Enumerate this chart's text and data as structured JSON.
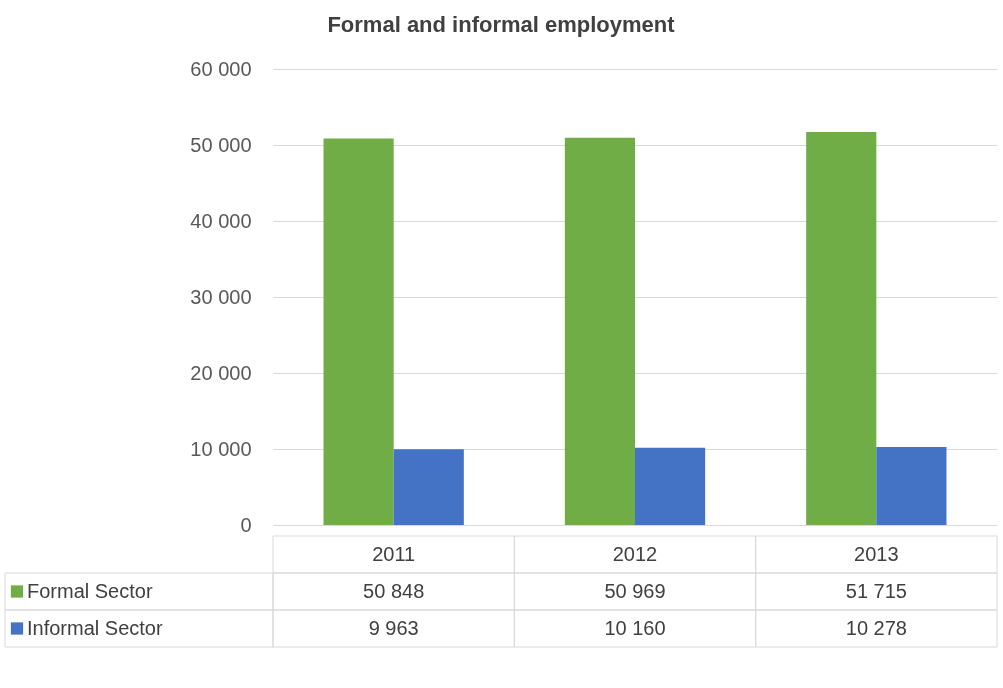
{
  "chart_data": {
    "type": "bar",
    "title": "Formal and informal employment",
    "categories": [
      "2011",
      "2012",
      "2013"
    ],
    "series": [
      {
        "name": "Formal Sector",
        "color": "#70ad47",
        "values": [
          50848,
          50969,
          51715
        ],
        "value_labels": [
          "50 848",
          "50 969",
          "51 715"
        ]
      },
      {
        "name": "Informal Sector",
        "color": "#4472c4",
        "values": [
          9963,
          10160,
          10278
        ],
        "value_labels": [
          "9 963",
          "10 160",
          "10 278"
        ]
      }
    ],
    "ylim": [
      0,
      60000
    ],
    "yticks": [
      {
        "value": 0,
        "label": "0"
      },
      {
        "value": 10000,
        "label": "10 000"
      },
      {
        "value": 20000,
        "label": "20 000"
      },
      {
        "value": 30000,
        "label": "30 000"
      },
      {
        "value": 40000,
        "label": "40 000"
      },
      {
        "value": 50000,
        "label": "50 000"
      },
      {
        "value": 60000,
        "label": "60 000"
      }
    ],
    "grid": "y",
    "legend": "bottom"
  }
}
